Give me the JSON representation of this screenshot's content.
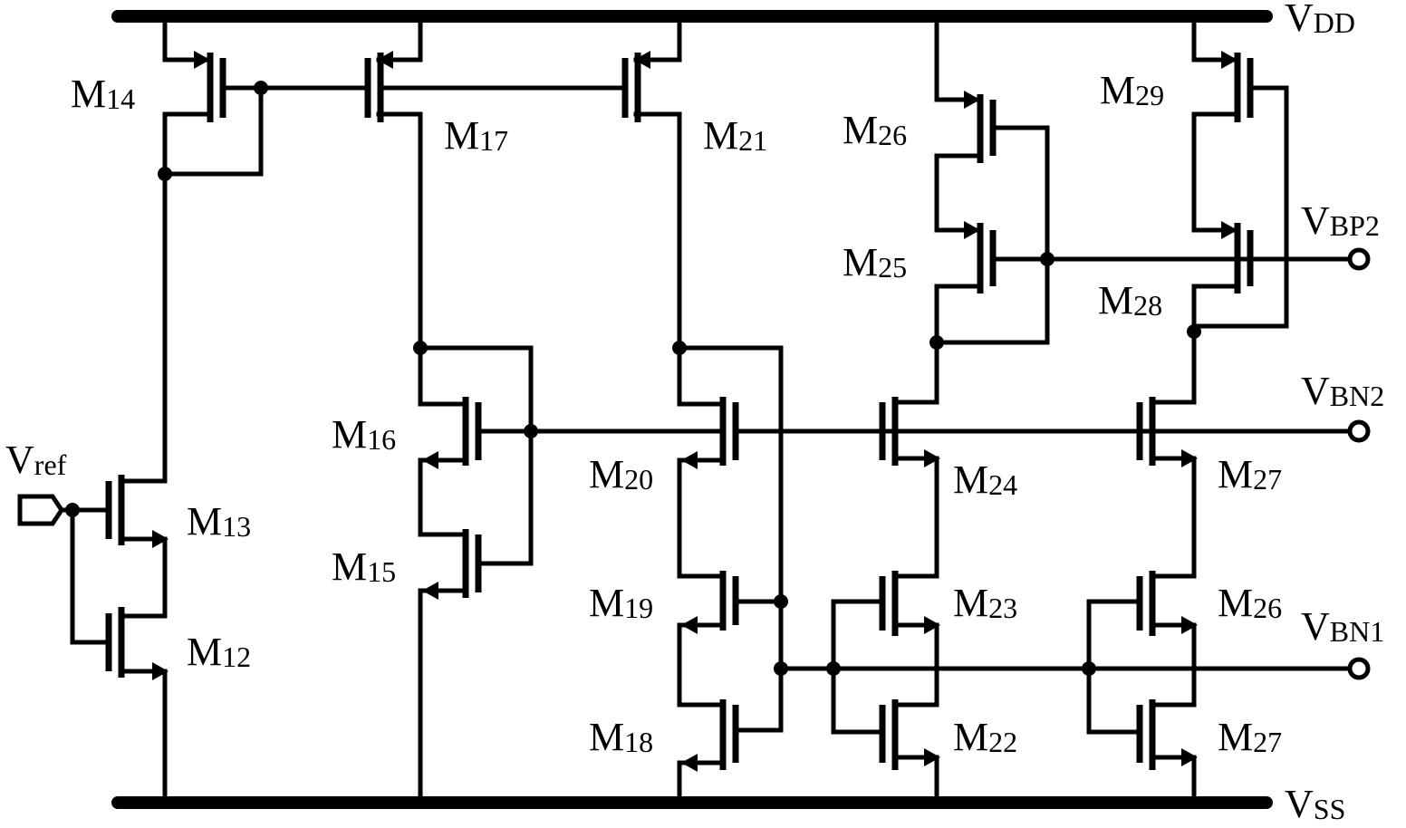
{
  "rails": {
    "vdd": {
      "main": "V",
      "sub": "DD"
    },
    "vss": {
      "main": "V",
      "sub": "SS"
    }
  },
  "ports": {
    "vref": {
      "main": "V",
      "sub": "ref"
    },
    "vbp2": {
      "main": "V",
      "sub": "BP2"
    },
    "vbn2": {
      "main": "V",
      "sub": "BN2"
    },
    "vbn1": {
      "main": "V",
      "sub": "BN1"
    }
  },
  "transistors": {
    "m12": {
      "main": "M",
      "sub": "12"
    },
    "m13": {
      "main": "M",
      "sub": "13"
    },
    "m14": {
      "main": "M",
      "sub": "14"
    },
    "m15": {
      "main": "M",
      "sub": "15"
    },
    "m16": {
      "main": "M",
      "sub": "16"
    },
    "m17": {
      "main": "M",
      "sub": "17"
    },
    "m18": {
      "main": "M",
      "sub": "18"
    },
    "m19": {
      "main": "M",
      "sub": "19"
    },
    "m20": {
      "main": "M",
      "sub": "20"
    },
    "m21": {
      "main": "M",
      "sub": "21"
    },
    "m22": {
      "main": "M",
      "sub": "22"
    },
    "m23": {
      "main": "M",
      "sub": "23"
    },
    "m24": {
      "main": "M",
      "sub": "24"
    },
    "m25": {
      "main": "M",
      "sub": "25"
    },
    "m26_top": {
      "main": "M",
      "sub": "26"
    },
    "m26_bottom": {
      "main": "M",
      "sub": "26"
    },
    "m27_mid": {
      "main": "M",
      "sub": "27"
    },
    "m27_bottom": {
      "main": "M",
      "sub": "27"
    },
    "m28": {
      "main": "M",
      "sub": "28"
    },
    "m29": {
      "main": "M",
      "sub": "29"
    }
  }
}
